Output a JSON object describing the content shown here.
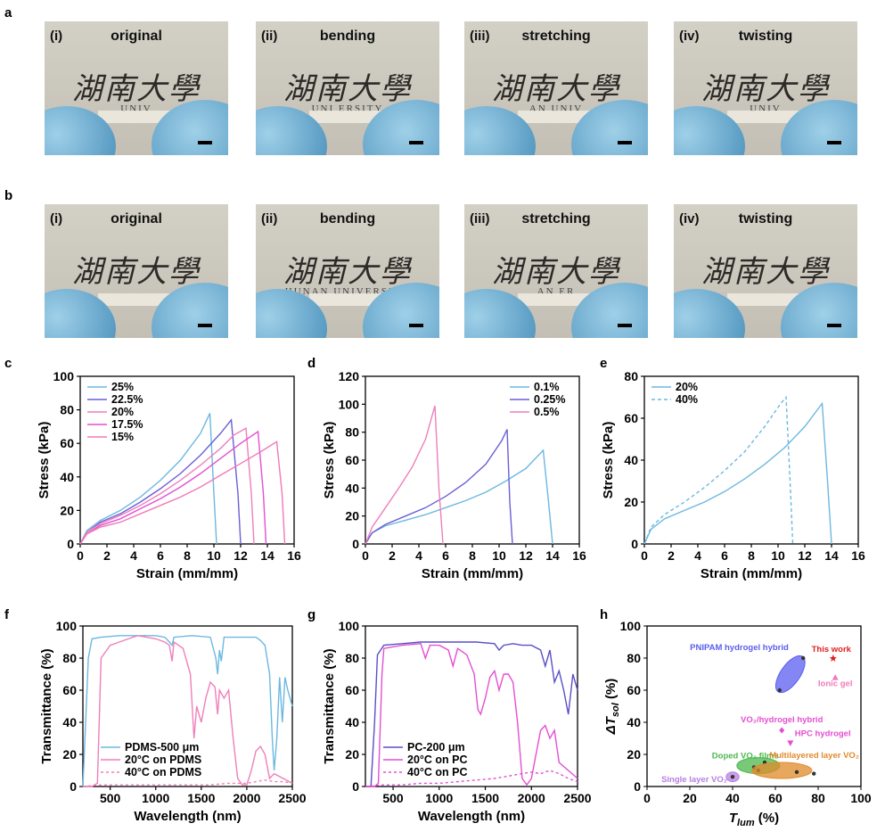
{
  "panel_labels": {
    "a": "a",
    "b": "b",
    "c": "c",
    "d": "d",
    "e": "e",
    "f": "f",
    "g": "g",
    "h": "h"
  },
  "photos": {
    "rows": [
      {
        "id": "a",
        "items": [
          {
            "roman": "(i)",
            "title": "original",
            "chars": "湖南大學",
            "uni": "UNIV"
          },
          {
            "roman": "(ii)",
            "title": "bending",
            "chars": "湖南大學",
            "uni": "UNI   ERSITY"
          },
          {
            "roman": "(iii)",
            "title": "stretching",
            "chars": "湖南大學",
            "uni": "AN UNIV"
          },
          {
            "roman": "(iv)",
            "title": "twisting",
            "chars": "湖南大學",
            "uni": "UNIV"
          }
        ]
      },
      {
        "id": "b",
        "items": [
          {
            "roman": "(i)",
            "title": "original",
            "chars": "湖南大學",
            "uni": ""
          },
          {
            "roman": "(ii)",
            "title": "bending",
            "chars": "湖南大學",
            "uni": "HUNAN UNIVERSITY"
          },
          {
            "roman": "(iii)",
            "title": "stretching",
            "chars": "湖南大學",
            "uni": "AN     ER"
          },
          {
            "roman": "(iv)",
            "title": "twisting",
            "chars": "湖南大學",
            "uni": ""
          }
        ]
      }
    ]
  },
  "chart_data": [
    {
      "id": "c",
      "type": "line",
      "xlabel": "Strain (mm/mm)",
      "ylabel": "Stress (kPa)",
      "xlim": [
        0,
        16
      ],
      "ylim": [
        0,
        100
      ],
      "xticks": [
        "0",
        "2",
        "4",
        "6",
        "8",
        "10",
        "12",
        "14",
        "16"
      ],
      "yticks": [
        "0",
        "20",
        "40",
        "60",
        "80",
        "100"
      ],
      "legend_position": "top-left",
      "series": [
        {
          "name": "25%",
          "color": "#6cb8e0",
          "dash": "",
          "x": [
            0,
            0.5,
            1.5,
            3,
            4.5,
            6,
            7.5,
            9,
            9.7,
            10,
            10.2
          ],
          "y": [
            0,
            8,
            14,
            20,
            28,
            38,
            50,
            66,
            78,
            30,
            0
          ]
        },
        {
          "name": "22.5%",
          "color": "#6a5fd6",
          "dash": "",
          "x": [
            0,
            0.5,
            1.5,
            3,
            4.5,
            6,
            7.5,
            9,
            10.5,
            11.3,
            11.8,
            12
          ],
          "y": [
            0,
            7,
            13,
            18,
            25,
            33,
            42,
            53,
            66,
            74,
            30,
            0
          ]
        },
        {
          "name": "20%",
          "color": "#ef7fba",
          "dash": "",
          "x": [
            0,
            0.5,
            1.5,
            3,
            4.5,
            6,
            7.5,
            9,
            10.5,
            11.5,
            12.4,
            12.8,
            13
          ],
          "y": [
            0,
            7,
            12,
            17,
            23,
            30,
            38,
            47,
            57,
            65,
            69,
            30,
            0
          ]
        },
        {
          "name": "17.5%",
          "color": "#e44fd2",
          "dash": "",
          "x": [
            0,
            0.5,
            1.5,
            3,
            4.5,
            6,
            7.5,
            9,
            10.5,
            12,
            13.3,
            13.7,
            13.9
          ],
          "y": [
            0,
            6,
            11,
            15,
            21,
            27,
            34,
            42,
            51,
            60,
            67,
            30,
            0
          ]
        },
        {
          "name": "15%",
          "color": "#f07ab8",
          "dash": "",
          "x": [
            0,
            0.5,
            1.5,
            3,
            4.5,
            6,
            7.5,
            9,
            10.5,
            12,
            13.5,
            14.7,
            15.1,
            15.3
          ],
          "y": [
            0,
            6,
            10,
            13,
            18,
            23,
            28,
            34,
            41,
            48,
            55,
            61,
            30,
            0
          ]
        }
      ]
    },
    {
      "id": "d",
      "type": "line",
      "xlabel": "Strain (mm/mm)",
      "ylabel": "Stress (kPa)",
      "xlim": [
        0,
        16
      ],
      "ylim": [
        0,
        120
      ],
      "xticks": [
        "0",
        "2",
        "4",
        "6",
        "8",
        "10",
        "12",
        "14",
        "16"
      ],
      "yticks": [
        "0",
        "20",
        "40",
        "60",
        "80",
        "100",
        "120"
      ],
      "legend_position": "top-right",
      "series": [
        {
          "name": "0.1%",
          "color": "#6cb8e0",
          "dash": "",
          "x": [
            0,
            0.5,
            1.5,
            3,
            4.5,
            6,
            7.5,
            9,
            10.5,
            12,
            13.3,
            13.7,
            14
          ],
          "y": [
            0,
            8,
            13,
            17,
            21,
            26,
            31,
            37,
            45,
            54,
            67,
            30,
            0
          ]
        },
        {
          "name": "0.25%",
          "color": "#6a5fd6",
          "dash": "",
          "x": [
            0,
            0.5,
            1.5,
            3,
            4.5,
            6,
            7.5,
            9,
            10.2,
            10.6,
            10.8,
            11
          ],
          "y": [
            0,
            8,
            14,
            20,
            26,
            34,
            44,
            57,
            74,
            82,
            30,
            0
          ]
        },
        {
          "name": "0.5%",
          "color": "#ef7fba",
          "dash": "",
          "x": [
            0,
            0.5,
            1.5,
            2.5,
            3.5,
            4.5,
            5.2,
            5.5,
            5.8
          ],
          "y": [
            0,
            12,
            26,
            40,
            55,
            75,
            99,
            40,
            0
          ]
        }
      ]
    },
    {
      "id": "e",
      "type": "line",
      "xlabel": "Strain (mm/mm)",
      "ylabel": "Stress (kPa)",
      "xlim": [
        0,
        16
      ],
      "ylim": [
        0,
        80
      ],
      "xticks": [
        "0",
        "2",
        "4",
        "6",
        "8",
        "10",
        "12",
        "14",
        "16"
      ],
      "yticks": [
        "0",
        "20",
        "40",
        "60",
        "80"
      ],
      "legend_position": "top-left",
      "series": [
        {
          "name": "20%",
          "color": "#6cb8e0",
          "dash": "",
          "x": [
            0,
            0.5,
            1.5,
            3,
            4.5,
            6,
            7.5,
            9,
            10.5,
            12,
            13.3,
            13.7,
            14
          ],
          "y": [
            0,
            7,
            12,
            16,
            20,
            25,
            31,
            38,
            46,
            56,
            67,
            30,
            0
          ]
        },
        {
          "name": "40%",
          "color": "#6cb8e0",
          "dash": "4,3",
          "x": [
            0,
            0.5,
            1.5,
            3,
            4.5,
            6,
            7.5,
            9,
            10.2,
            10.6,
            10.9,
            11.1
          ],
          "y": [
            0,
            8,
            14,
            20,
            27,
            35,
            44,
            56,
            67,
            70,
            30,
            0
          ]
        }
      ]
    },
    {
      "id": "f",
      "type": "line",
      "xlabel": "Wavelength (nm)",
      "ylabel": "Transmittance (%)",
      "xlim": [
        200,
        2500
      ],
      "ylim": [
        0,
        100
      ],
      "xticks": [
        "500",
        "1000",
        "1500",
        "2000",
        "2500"
      ],
      "xtick_values": [
        500,
        1000,
        1500,
        2000,
        2500
      ],
      "yticks": [
        "0",
        "20",
        "40",
        "60",
        "80",
        "100"
      ],
      "legend_position": "bottom-left",
      "series": [
        {
          "name": "PDMS-500 μm",
          "color": "#6cb8e0",
          "dash": "",
          "x": [
            200,
            230,
            260,
            300,
            400,
            600,
            800,
            1000,
            1100,
            1150,
            1180,
            1200,
            1400,
            1600,
            1660,
            1680,
            1700,
            1720,
            1750,
            1800,
            1900,
            2000,
            2100,
            2150,
            2200,
            2250,
            2280,
            2300,
            2330,
            2360,
            2390,
            2420,
            2450,
            2500
          ],
          "y": [
            0,
            40,
            80,
            92,
            93,
            94,
            94,
            94,
            93,
            90,
            88,
            93,
            94,
            93,
            80,
            70,
            85,
            78,
            93,
            93,
            93,
            93,
            93,
            91,
            88,
            70,
            30,
            10,
            30,
            68,
            40,
            68,
            60,
            50
          ]
        },
        {
          "name": "20°C on PDMS",
          "color": "#ef7fba",
          "dash": "",
          "x": [
            200,
            300,
            360,
            400,
            500,
            600,
            700,
            800,
            900,
            1000,
            1100,
            1150,
            1180,
            1200,
            1300,
            1380,
            1420,
            1450,
            1500,
            1550,
            1600,
            1650,
            1680,
            1700,
            1750,
            1800,
            1850,
            1900,
            1950,
            2000,
            2050,
            2100,
            2150,
            2200,
            2250,
            2300,
            2400,
            2500
          ],
          "y": [
            0,
            0,
            2,
            80,
            88,
            90,
            92,
            94,
            93,
            92,
            90,
            88,
            78,
            90,
            86,
            70,
            30,
            50,
            40,
            55,
            65,
            62,
            45,
            60,
            55,
            60,
            30,
            5,
            1,
            1,
            10,
            22,
            25,
            20,
            5,
            8,
            5,
            2
          ]
        },
        {
          "name": "40°C on PDMS",
          "color": "#ef7fba",
          "dash": "3,3",
          "x": [
            200,
            400,
            600,
            800,
            1000,
            1200,
            1400,
            1600,
            1800,
            1900,
            2000,
            2100,
            2200,
            2300,
            2400,
            2500
          ],
          "y": [
            0,
            1,
            1,
            1,
            1,
            1,
            1,
            1,
            2,
            2,
            2,
            3,
            4,
            3,
            3,
            2
          ]
        }
      ]
    },
    {
      "id": "g",
      "type": "line",
      "xlabel": "Wavelength (nm)",
      "ylabel": "Transmittance (%)",
      "xlim": [
        200,
        2500
      ],
      "ylim": [
        0,
        100
      ],
      "xticks": [
        "500",
        "1000",
        "1500",
        "2000",
        "2500"
      ],
      "xtick_values": [
        500,
        1000,
        1500,
        2000,
        2500
      ],
      "yticks": [
        "0",
        "20",
        "40",
        "60",
        "80",
        "100"
      ],
      "legend_position": "bottom-left",
      "series": [
        {
          "name": "PC-200 μm",
          "color": "#5a4fc8",
          "dash": "",
          "x": [
            200,
            260,
            300,
            330,
            400,
            600,
            800,
            1000,
            1200,
            1400,
            1600,
            1650,
            1700,
            1800,
            1900,
            2000,
            2100,
            2150,
            2200,
            2250,
            2300,
            2350,
            2400,
            2450,
            2500
          ],
          "y": [
            0,
            0,
            40,
            82,
            88,
            89,
            90,
            90,
            90,
            90,
            89,
            85,
            88,
            89,
            88,
            88,
            85,
            75,
            85,
            65,
            72,
            60,
            45,
            70,
            60
          ]
        },
        {
          "name": "20°C on PC",
          "color": "#e44fd2",
          "dash": "",
          "x": [
            200,
            300,
            340,
            380,
            400,
            600,
            800,
            850,
            900,
            1000,
            1100,
            1150,
            1200,
            1300,
            1380,
            1420,
            1450,
            1500,
            1550,
            1600,
            1650,
            1700,
            1750,
            1800,
            1850,
            1900,
            1950,
            2000,
            2050,
            2100,
            2150,
            2200,
            2250,
            2300,
            2400,
            2500
          ],
          "y": [
            0,
            0,
            2,
            70,
            86,
            88,
            89,
            80,
            88,
            88,
            85,
            75,
            86,
            82,
            70,
            48,
            45,
            55,
            68,
            72,
            60,
            70,
            70,
            65,
            40,
            5,
            1,
            5,
            20,
            35,
            38,
            30,
            35,
            15,
            10,
            5
          ]
        },
        {
          "name": "40°C on PC",
          "color": "#e44fd2",
          "dash": "3,3",
          "x": [
            200,
            400,
            600,
            800,
            1000,
            1200,
            1400,
            1600,
            1800,
            1900,
            2000,
            2100,
            2200,
            2300,
            2400,
            2500
          ],
          "y": [
            0,
            1,
            1,
            2,
            2,
            3,
            4,
            5,
            7,
            8,
            9,
            8,
            10,
            8,
            5,
            3
          ]
        }
      ]
    },
    {
      "id": "h",
      "type": "scatter",
      "xlabel": "T",
      "xlabel_sub": "lum",
      "xlabel_unit": " (%)",
      "ylabel": "ΔT",
      "ylabel_sub": "sol",
      "ylabel_unit": " (%)",
      "xlim": [
        0,
        100
      ],
      "ylim": [
        0,
        100
      ],
      "xticks": [
        "0",
        "20",
        "40",
        "60",
        "80",
        "100"
      ],
      "yticks": [
        "0",
        "20",
        "40",
        "60",
        "80",
        "100"
      ],
      "regions": [
        {
          "name": "PNIPAM hydrogel hybrid",
          "label": "PNIPAM hydrogel hybrid",
          "color": "#5b5ef0",
          "cx": 67,
          "cy": 70,
          "rx": 10,
          "ry": 6,
          "rot": -55,
          "points": [
            [
              62,
              60
            ],
            [
              73,
              80
            ]
          ]
        },
        {
          "name": "Doped VO₂ films",
          "label": "Doped VO₂ films",
          "color": "#4bb84b",
          "cx": 52,
          "cy": 13,
          "rx": 10,
          "ry": 5,
          "rot": 0,
          "points": [
            [
              50,
              12
            ],
            [
              55,
              15
            ],
            [
              52,
              10
            ]
          ]
        },
        {
          "name": "Multilayered layer VO₂",
          "label": "Multilayered layer VO₂",
          "color": "#e08a2a",
          "cx": 63,
          "cy": 10,
          "rx": 14,
          "ry": 5,
          "rot": 0,
          "points": [
            [
              70,
              9
            ],
            [
              78,
              8
            ]
          ]
        },
        {
          "name": "Single layer VO₂",
          "label": "Single layer VO₂",
          "color": "#b77fe0",
          "cx": 40,
          "cy": 6,
          "rx": 3,
          "ry": 3,
          "rot": 0,
          "points": [
            [
              40,
              6
            ]
          ]
        }
      ],
      "markers": [
        {
          "name": "This work",
          "label": "This work",
          "color": "#e02020",
          "x": 87,
          "y": 80,
          "symbol": "star"
        },
        {
          "name": "Ionic gel",
          "label": "Ionic gel",
          "color": "#f07ab8",
          "x": 88,
          "y": 68,
          "symbol": "triangle"
        },
        {
          "name": "VO₂/hydrogel hybrid",
          "label": "VO₂/hydrogel hybrid",
          "color": "#e44fd2",
          "x": 63,
          "y": 35,
          "symbol": "diamond"
        },
        {
          "name": "HPC hydrogel",
          "label": "HPC hydrogel",
          "color": "#e44fd2",
          "x": 67,
          "y": 27,
          "symbol": "triangle-down"
        }
      ]
    }
  ]
}
